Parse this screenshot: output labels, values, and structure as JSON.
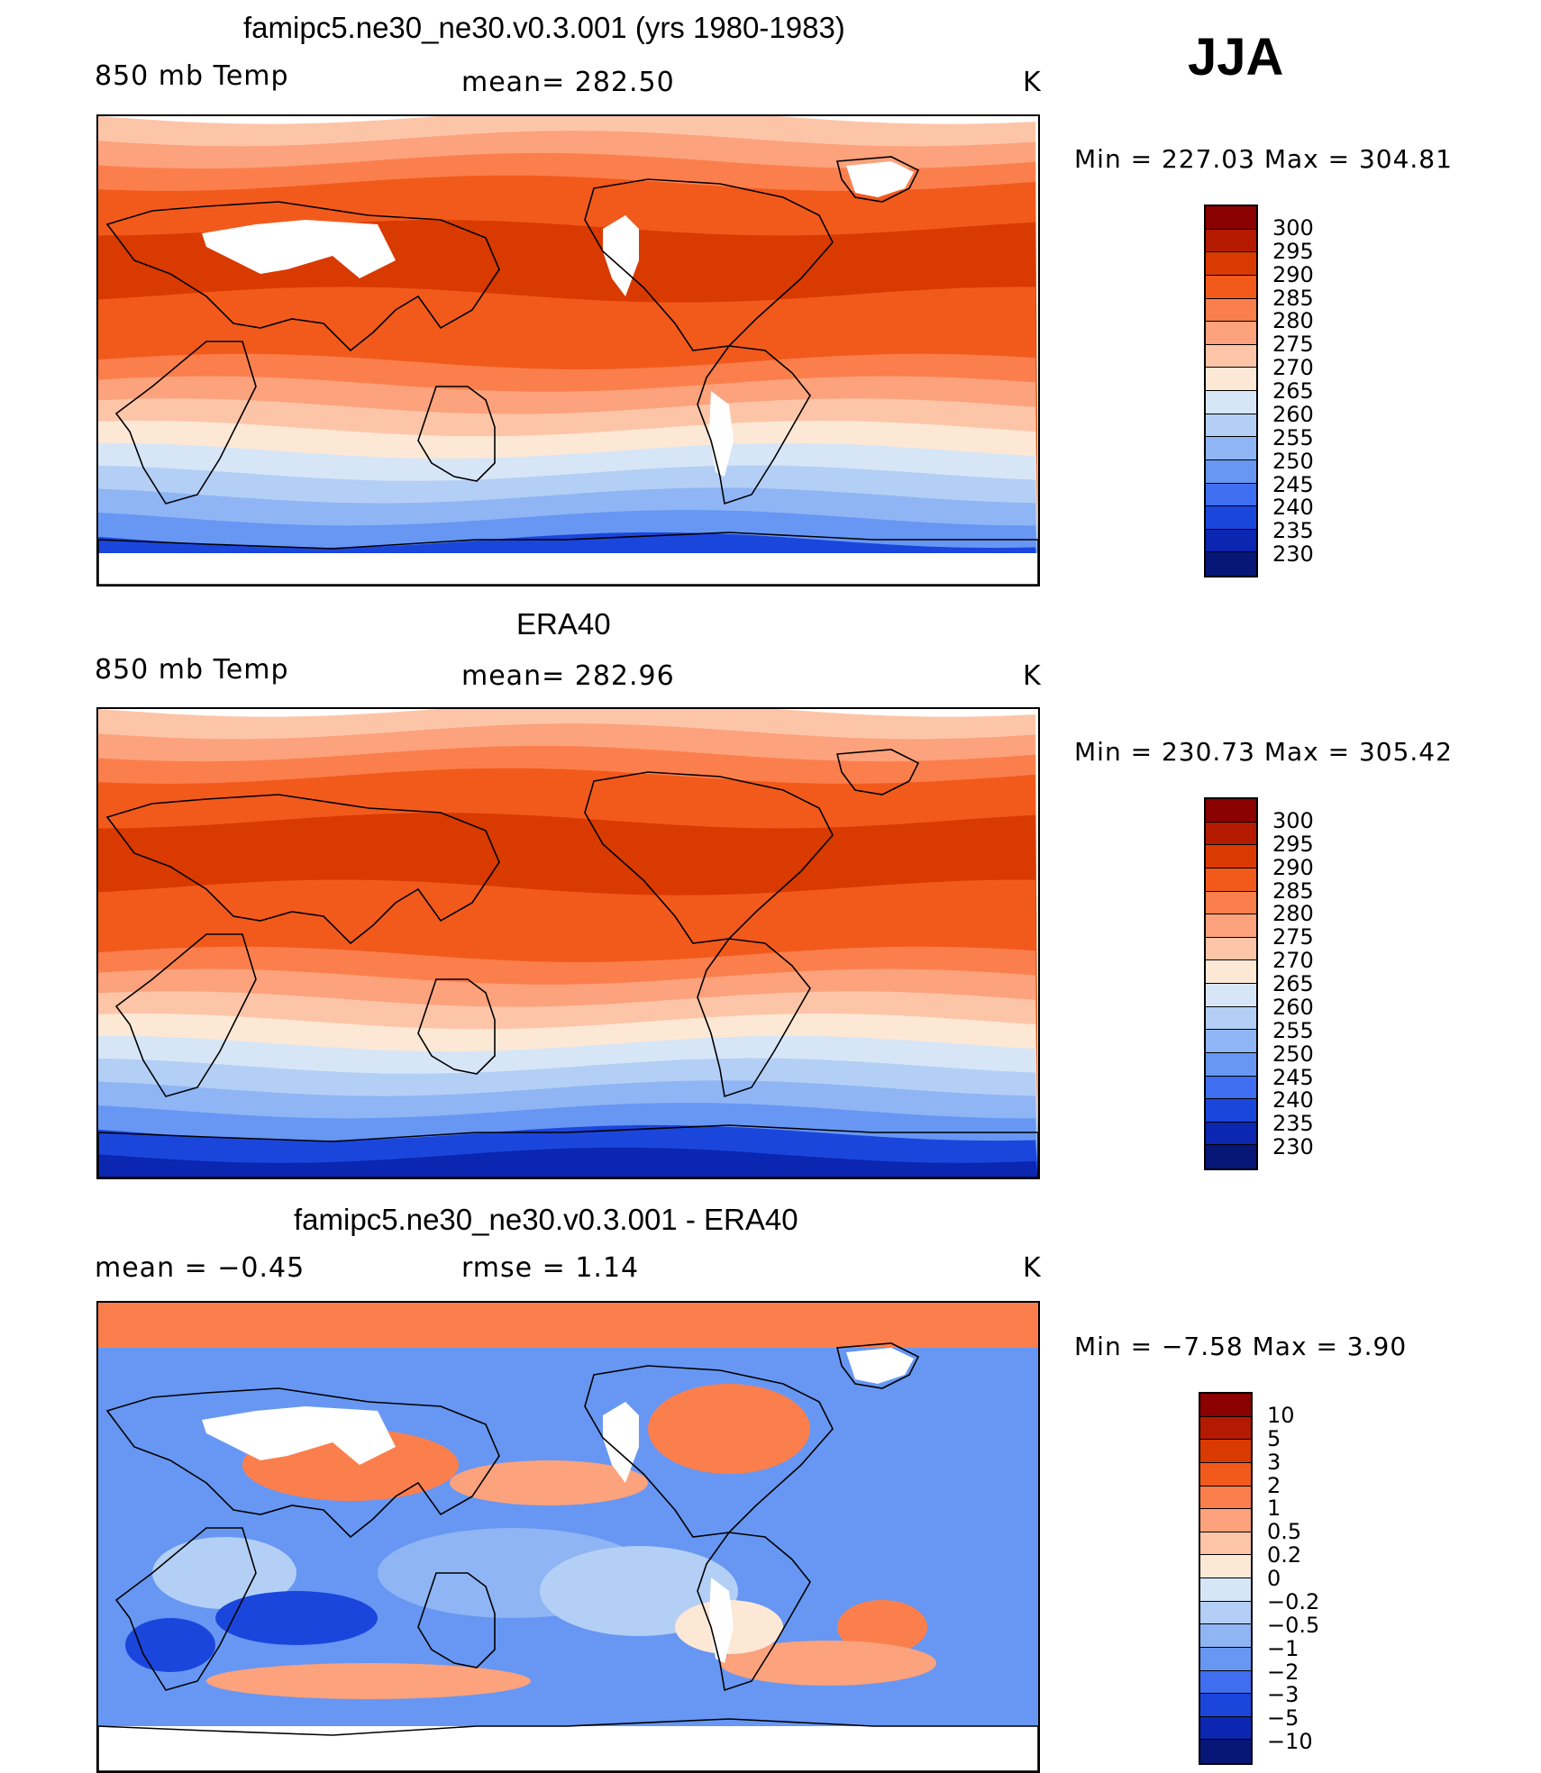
{
  "season": "JJA",
  "panels": [
    {
      "title": "famipc5.ne30_ne30.v0.3.001 (yrs 1980-1983)",
      "left_label": "850 mb Temp",
      "center_label": "mean= 282.50",
      "units": "K",
      "minmax": "Min = 227.03 Max = 304.81",
      "palette": "abs",
      "missing_land": true
    },
    {
      "title": "ERA40",
      "left_label": "850 mb Temp",
      "center_label": "mean= 282.96",
      "units": "K",
      "minmax": "Min = 230.73 Max = 305.42",
      "palette": "abs",
      "missing_land": false
    },
    {
      "title": "famipc5.ne30_ne30.v0.3.001 - ERA40",
      "left_label": "mean =   −0.45",
      "center_label": "rmse =    1.14",
      "units": "K",
      "minmax": "Min =  −7.58 Max =    3.90",
      "palette": "diff",
      "missing_land": true
    }
  ],
  "colorbars": {
    "abs": {
      "labels": [
        "300",
        "295",
        "290",
        "285",
        "280",
        "275",
        "270",
        "265",
        "260",
        "255",
        "250",
        "245",
        "240",
        "235",
        "230"
      ],
      "colors": [
        "#8b0000",
        "#b31a00",
        "#d93a00",
        "#f25a1c",
        "#fb7f4d",
        "#fca27c",
        "#fdc5a8",
        "#fde8d6",
        "#d7e6f7",
        "#b4cff5",
        "#8fb5f4",
        "#6797f3",
        "#3f6ff0",
        "#1b46dc",
        "#0b26b0",
        "#071778"
      ]
    },
    "diff": {
      "labels": [
        "10",
        "5",
        "3",
        "2",
        "1",
        "0.5",
        "0.2",
        "0",
        "−0.2",
        "−0.5",
        "−1",
        "−2",
        "−3",
        "−5",
        "−10"
      ],
      "colors": [
        "#8b0000",
        "#b31a00",
        "#d93a00",
        "#f25a1c",
        "#fb7f4d",
        "#fca27c",
        "#fdc5a8",
        "#fde8d6",
        "#d7e6f7",
        "#b4cff5",
        "#8fb5f4",
        "#6797f3",
        "#3f6ff0",
        "#1b46dc",
        "#0b26b0",
        "#071778"
      ]
    }
  }
}
